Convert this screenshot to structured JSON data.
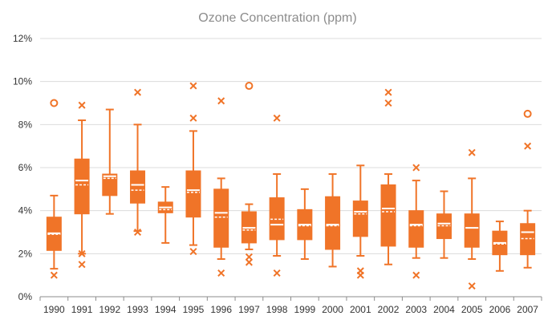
{
  "chart_data": {
    "type": "box",
    "title": "Ozone Concentration (ppm)",
    "xlabel": "",
    "ylabel": "",
    "ylim": [
      0,
      12
    ],
    "y_ticks": [
      "0%",
      "2%",
      "4%",
      "6%",
      "8%",
      "10%",
      "12%"
    ],
    "grid": true,
    "legend": "none",
    "color": "#f07428",
    "categories": [
      "1990",
      "1991",
      "1992",
      "1993",
      "1994",
      "1995",
      "1996",
      "1997",
      "1998",
      "1999",
      "2000",
      "2001",
      "2002",
      "2003",
      "2004",
      "2005",
      "2006",
      "2007"
    ],
    "boxes": [
      {
        "year": "1990",
        "min": 1.3,
        "q1": 2.15,
        "median": 2.95,
        "mean": 2.9,
        "q3": 3.7,
        "max": 4.7,
        "outliers": [
          {
            "value": 9.0,
            "marker": "circle"
          },
          {
            "value": 1.0,
            "marker": "x"
          }
        ]
      },
      {
        "year": "1991",
        "min": 2.0,
        "q1": 3.85,
        "median": 5.4,
        "mean": 5.2,
        "q3": 6.4,
        "max": 8.2,
        "outliers": [
          {
            "value": 8.9,
            "marker": "x"
          },
          {
            "value": 2.0,
            "marker": "x"
          },
          {
            "value": 1.5,
            "marker": "x"
          }
        ]
      },
      {
        "year": "1992",
        "min": 3.85,
        "q1": 4.7,
        "median": 5.6,
        "mean": 5.5,
        "q3": 5.7,
        "max": 8.7,
        "outliers": []
      },
      {
        "year": "1993",
        "min": 3.05,
        "q1": 4.35,
        "median": 5.2,
        "mean": 4.95,
        "q3": 5.85,
        "max": 8.0,
        "outliers": [
          {
            "value": 9.5,
            "marker": "x"
          },
          {
            "value": 3.0,
            "marker": "x"
          }
        ]
      },
      {
        "year": "1994",
        "min": 2.5,
        "q1": 3.9,
        "median": 4.15,
        "mean": 4.05,
        "q3": 4.4,
        "max": 5.1,
        "outliers": []
      },
      {
        "year": "1995",
        "min": 2.4,
        "q1": 3.7,
        "median": 4.95,
        "mean": 4.85,
        "q3": 5.85,
        "max": 7.7,
        "outliers": [
          {
            "value": 9.8,
            "marker": "x"
          },
          {
            "value": 8.3,
            "marker": "x"
          },
          {
            "value": 2.1,
            "marker": "x"
          }
        ]
      },
      {
        "year": "1996",
        "min": 1.75,
        "q1": 2.3,
        "median": 3.9,
        "mean": 3.7,
        "q3": 5.0,
        "max": 5.5,
        "outliers": [
          {
            "value": 9.1,
            "marker": "x"
          },
          {
            "value": 1.1,
            "marker": "x"
          }
        ]
      },
      {
        "year": "1997",
        "min": 2.2,
        "q1": 2.5,
        "median": 3.2,
        "mean": 3.1,
        "q3": 3.95,
        "max": 4.3,
        "outliers": [
          {
            "value": 9.8,
            "marker": "circle"
          },
          {
            "value": 1.85,
            "marker": "x"
          },
          {
            "value": 1.6,
            "marker": "x"
          }
        ]
      },
      {
        "year": "1998",
        "min": 1.9,
        "q1": 2.65,
        "median": 3.35,
        "mean": 3.6,
        "q3": 4.6,
        "max": 5.7,
        "outliers": [
          {
            "value": 8.3,
            "marker": "x"
          },
          {
            "value": 1.1,
            "marker": "x"
          }
        ]
      },
      {
        "year": "1999",
        "min": 1.75,
        "q1": 2.65,
        "median": 3.35,
        "mean": 3.3,
        "q3": 4.05,
        "max": 5.0,
        "outliers": []
      },
      {
        "year": "2000",
        "min": 1.4,
        "q1": 2.2,
        "median": 3.35,
        "mean": 3.3,
        "q3": 4.65,
        "max": 5.7,
        "outliers": []
      },
      {
        "year": "2001",
        "min": 1.9,
        "q1": 2.8,
        "median": 3.95,
        "mean": 3.85,
        "q3": 4.45,
        "max": 6.1,
        "outliers": [
          {
            "value": 1.2,
            "marker": "x"
          },
          {
            "value": 1.0,
            "marker": "x"
          }
        ]
      },
      {
        "year": "2002",
        "min": 1.5,
        "q1": 2.35,
        "median": 4.1,
        "mean": 3.95,
        "q3": 5.2,
        "max": 5.7,
        "outliers": [
          {
            "value": 9.5,
            "marker": "x"
          },
          {
            "value": 9.0,
            "marker": "x"
          }
        ]
      },
      {
        "year": "2003",
        "min": 1.8,
        "q1": 2.3,
        "median": 3.35,
        "mean": 3.3,
        "q3": 4.0,
        "max": 5.4,
        "outliers": [
          {
            "value": 6.0,
            "marker": "x"
          },
          {
            "value": 1.0,
            "marker": "x"
          }
        ]
      },
      {
        "year": "2004",
        "min": 1.8,
        "q1": 2.7,
        "median": 3.4,
        "mean": 3.3,
        "q3": 3.85,
        "max": 4.9,
        "outliers": []
      },
      {
        "year": "2005",
        "min": 1.75,
        "q1": 2.3,
        "median": 3.2,
        "mean": 3.2,
        "q3": 3.85,
        "max": 5.5,
        "outliers": [
          {
            "value": 6.7,
            "marker": "x"
          },
          {
            "value": 0.5,
            "marker": "x"
          }
        ]
      },
      {
        "year": "2006",
        "min": 1.2,
        "q1": 1.95,
        "median": 2.5,
        "mean": 2.45,
        "q3": 3.05,
        "max": 3.5,
        "outliers": []
      },
      {
        "year": "2007",
        "min": 1.35,
        "q1": 1.95,
        "median": 3.0,
        "mean": 2.7,
        "q3": 3.4,
        "max": 4.0,
        "outliers": [
          {
            "value": 8.5,
            "marker": "circle"
          },
          {
            "value": 7.0,
            "marker": "x"
          }
        ]
      }
    ]
  }
}
